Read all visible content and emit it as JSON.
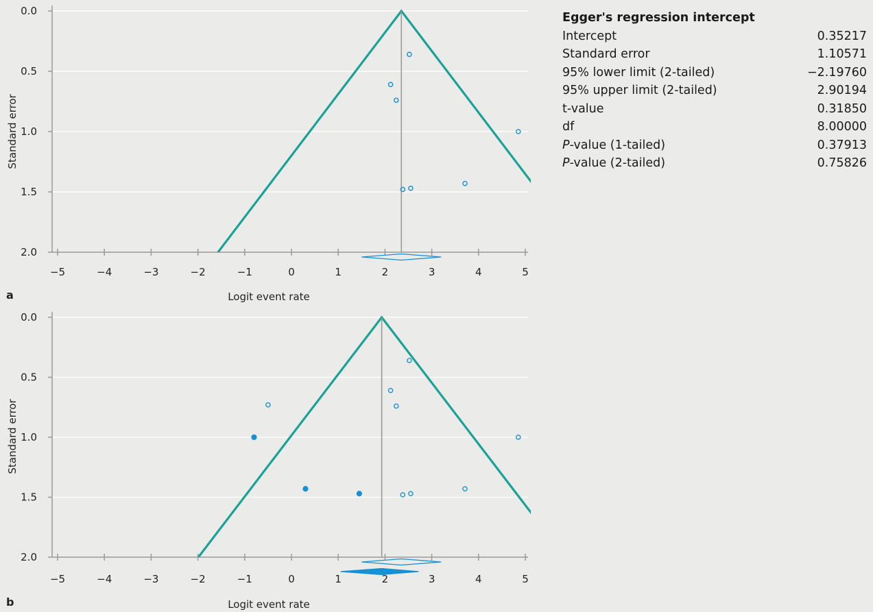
{
  "colors": {
    "funnel": "#1aa296",
    "marker": "#1790d4",
    "axis": "#9a9a9a",
    "grid": "#ffffff",
    "background": "#ebebea"
  },
  "shared": {
    "x_ticks": [
      -5,
      -4,
      -3,
      -2,
      -1,
      0,
      1,
      2,
      3,
      4,
      5
    ],
    "x_tick_labels": [
      "−5",
      "−4",
      "−3",
      "−2",
      "−1",
      "0",
      "1",
      "2",
      "3",
      "4",
      "5"
    ],
    "y_ticks": [
      0.0,
      0.5,
      1.0,
      1.5,
      2.0
    ],
    "y_tick_labels": [
      "0.0",
      "0.5",
      "1.0",
      "1.5",
      "2.0"
    ]
  },
  "chart_data": [
    {
      "type": "scatter",
      "panel_label": "a",
      "xlabel": "Logit event rate",
      "ylabel": "Standard error",
      "xlim": [
        -5,
        5
      ],
      "ylim": [
        0,
        2
      ],
      "y_inverted": true,
      "grid": true,
      "combined_estimate": 2.35,
      "summary_diamonds": [
        {
          "center": 2.35,
          "low": 1.5,
          "high": 3.2,
          "filled": false
        }
      ],
      "series": [
        {
          "filled": false,
          "points": [
            {
              "x": 2.52,
              "y": 0.36
            },
            {
              "x": 2.12,
              "y": 0.61
            },
            {
              "x": 2.24,
              "y": 0.74
            },
            {
              "x": 4.85,
              "y": 1.0
            },
            {
              "x": 3.71,
              "y": 1.43
            },
            {
              "x": 2.55,
              "y": 1.47
            },
            {
              "x": 2.38,
              "y": 1.48
            }
          ]
        }
      ]
    },
    {
      "type": "scatter",
      "panel_label": "b",
      "xlabel": "Logit event rate",
      "ylabel": "Standard error",
      "xlim": [
        -5,
        5
      ],
      "ylim": [
        0,
        2
      ],
      "y_inverted": true,
      "grid": true,
      "combined_estimate": 1.93,
      "summary_diamonds": [
        {
          "center": 2.35,
          "low": 1.5,
          "high": 3.2,
          "filled": false
        },
        {
          "center": 1.93,
          "low": 1.05,
          "high": 2.72,
          "filled": true
        }
      ],
      "series": [
        {
          "filled": false,
          "points": [
            {
              "x": 2.52,
              "y": 0.36
            },
            {
              "x": 2.12,
              "y": 0.61
            },
            {
              "x": 2.24,
              "y": 0.74
            },
            {
              "x": -0.5,
              "y": 0.73
            },
            {
              "x": 4.85,
              "y": 1.0
            },
            {
              "x": 3.71,
              "y": 1.43
            },
            {
              "x": 2.55,
              "y": 1.47
            },
            {
              "x": 2.38,
              "y": 1.48
            }
          ]
        },
        {
          "filled": true,
          "points": [
            {
              "x": -0.8,
              "y": 1.0
            },
            {
              "x": 0.3,
              "y": 1.43
            },
            {
              "x": 1.45,
              "y": 1.47
            }
          ]
        }
      ]
    }
  ],
  "egger": {
    "title": "Egger's regression intercept",
    "rows": [
      {
        "label": "Intercept",
        "value": "0.35217"
      },
      {
        "label": "Standard error",
        "value": "1.10571"
      },
      {
        "label": "95% lower limit (2-tailed)",
        "value": "−2.19760"
      },
      {
        "label": "95% upper limit (2-tailed)",
        "value": "2.90194"
      },
      {
        "label": "t-value",
        "value": "0.31850"
      },
      {
        "label": "df",
        "value": "8.00000"
      },
      {
        "label_italic": "P",
        "label_rest": "-value (1-tailed)",
        "value": "0.37913"
      },
      {
        "label_italic": "P",
        "label_rest": "-value (2-tailed)",
        "value": "0.75826"
      }
    ]
  }
}
